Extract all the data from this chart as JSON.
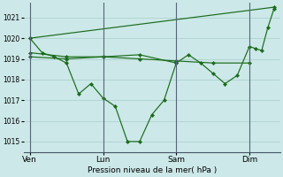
{
  "xlabel": "Pression niveau de la mer( hPa )",
  "bg_color": "#cce8e8",
  "grid_color": "#aacccc",
  "line_color": "#1a6b1a",
  "ylim": [
    1014.5,
    1021.7
  ],
  "yticks": [
    1015,
    1016,
    1017,
    1018,
    1019,
    1020,
    1021
  ],
  "xtick_labels": [
    "Ven",
    "Lun",
    "Sam",
    "Dim"
  ],
  "xtick_positions": [
    0,
    36,
    72,
    108
  ],
  "vline_positions": [
    0,
    36,
    72,
    108
  ],
  "xlim": [
    -3,
    123
  ],
  "series": [
    {
      "x": [
        0,
        6,
        12,
        18,
        24,
        30,
        36,
        42,
        48,
        54,
        60,
        66,
        72,
        78,
        84,
        90,
        96,
        102,
        108,
        111,
        114,
        117,
        120
      ],
      "y": [
        1020.0,
        1019.3,
        1019.1,
        1018.8,
        1017.3,
        1017.8,
        1017.1,
        1016.7,
        1015.0,
        1015.0,
        1016.3,
        1017.0,
        1018.8,
        1019.2,
        1018.8,
        1018.3,
        1017.8,
        1018.2,
        1019.6,
        1019.5,
        1019.4,
        1020.5,
        1021.4
      ]
    },
    {
      "x": [
        0,
        120
      ],
      "y": [
        1020.0,
        1021.5
      ]
    },
    {
      "x": [
        0,
        18,
        36,
        54,
        72,
        90,
        108
      ],
      "y": [
        1019.3,
        1019.1,
        1019.1,
        1019.0,
        1018.9,
        1018.8,
        1018.8
      ]
    },
    {
      "x": [
        0,
        18,
        36,
        54,
        72
      ],
      "y": [
        1019.1,
        1019.0,
        1019.1,
        1019.2,
        1018.8
      ]
    }
  ]
}
